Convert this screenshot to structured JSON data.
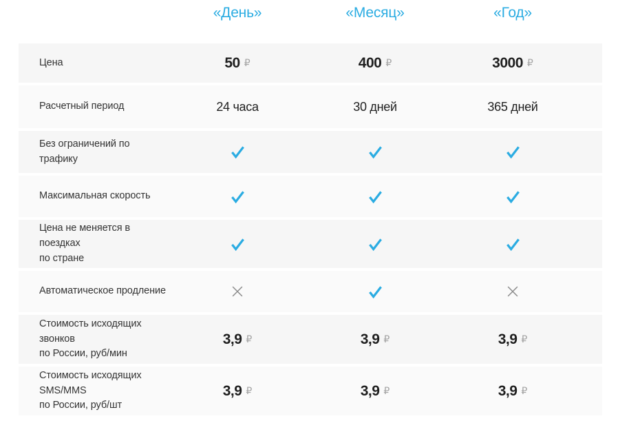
{
  "colors": {
    "accent": "#2bace2",
    "cross": "#8a8a8a",
    "row_dark": "#f6f6f6",
    "row_light": "#fafafa"
  },
  "currency_symbol": "₽",
  "columns": [
    "«День»",
    "«Месяц»",
    "«Год»"
  ],
  "rows": [
    {
      "label": "Цена",
      "type": "price",
      "values": [
        "50",
        "400",
        "3000"
      ]
    },
    {
      "label": "Расчетный период",
      "type": "text",
      "values": [
        "24 часа",
        "30 дней",
        "365 дней"
      ]
    },
    {
      "label": "Без ограничений по трафику",
      "type": "marks",
      "values": [
        "check",
        "check",
        "check"
      ]
    },
    {
      "label": "Максимальная скорость",
      "type": "marks",
      "values": [
        "check",
        "check",
        "check"
      ]
    },
    {
      "label": "Цена не меняется в поездках\nпо стране",
      "type": "marks",
      "values": [
        "check",
        "check",
        "check"
      ]
    },
    {
      "label": "Автоматическое продление",
      "type": "marks",
      "values": [
        "cross",
        "check",
        "cross"
      ]
    },
    {
      "label": "Стоимость исходящих звонков\nпо России, руб/мин",
      "type": "price",
      "values": [
        "3,9",
        "3,9",
        "3,9"
      ]
    },
    {
      "label": "Стоимость исходящих SMS/MMS\nпо России, руб/шт",
      "type": "price",
      "values": [
        "3,9",
        "3,9",
        "3,9"
      ]
    }
  ]
}
